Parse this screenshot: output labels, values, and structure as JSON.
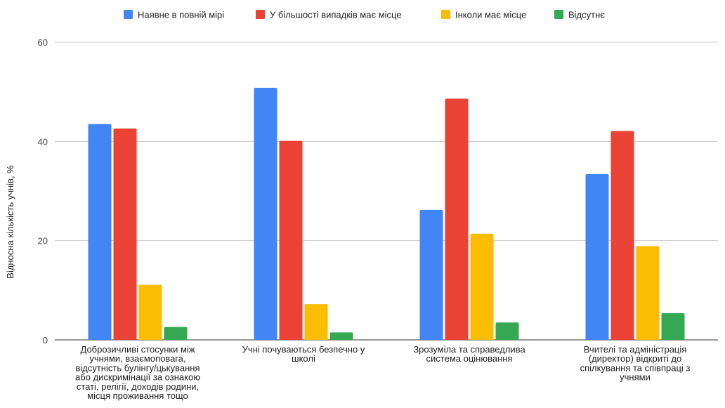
{
  "chart_data": {
    "type": "bar",
    "ylabel": "Відносна кількість учнів, %",
    "xlabel": "",
    "ylim": [
      0,
      60
    ],
    "yticks": [
      0,
      20,
      40,
      60
    ],
    "grid": true,
    "legend_position": "top",
    "categories": [
      [
        "Доброзичливі стосунки між",
        "учнями, взаємоповага,",
        "відсутність булінгу/цькування",
        "або дискримінації за ознакою",
        "статі, релігії, доходів родини,",
        "місця проживання тощо"
      ],
      [
        "Учні почуваються безпечно у",
        "школі"
      ],
      [
        "Зрозуміла та справедлива",
        "система оцінювання"
      ],
      [
        "Вчителі та адміністрація",
        "(директор) відкриті до",
        "спілкування та співпраці з",
        "учнями"
      ]
    ],
    "series": [
      {
        "name": "Наявне в повній мірі",
        "color": "#4285f4",
        "values": [
          43.5,
          50.8,
          26.2,
          33.4
        ]
      },
      {
        "name": "У більшості випадків має місце",
        "color": "#ea4335",
        "values": [
          42.6,
          40.1,
          48.6,
          42.1
        ]
      },
      {
        "name": "Інколи має місце",
        "color": "#fbbc04",
        "values": [
          11.1,
          7.2,
          21.4,
          18.9
        ]
      },
      {
        "name": "Відсутнє",
        "color": "#34a853",
        "values": [
          2.6,
          1.5,
          3.5,
          5.4
        ]
      }
    ]
  }
}
